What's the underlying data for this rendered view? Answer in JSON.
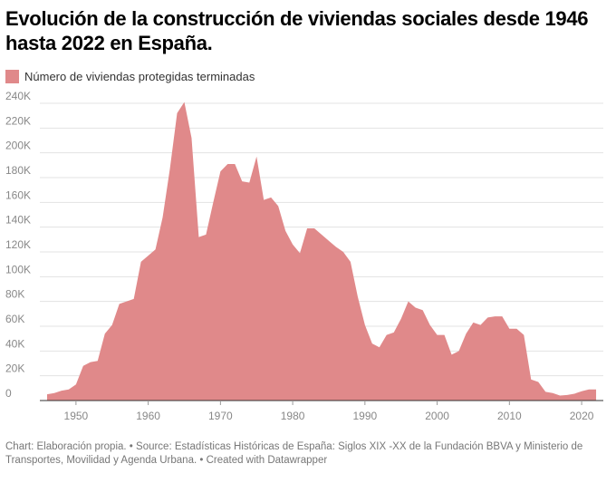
{
  "title": "Evolución de la construcción de viviendas sociales desde 1946 hasta 2022 en España.",
  "footer": "Chart: Elaboración propia. • Source: Estadísticas Históricas de España: Siglos XIX -XX de la Fundación BBVA y Ministerio de Transportes, Movilidad y Agenda Urbana. • Created with Datawrapper",
  "colors": {
    "area": "#e0898a",
    "grid": "#e3e3e3",
    "baseline": "#333333"
  },
  "chart_data": {
    "type": "area",
    "title": "Evolución de la construcción de viviendas sociales desde 1946 hasta 2022 en España.",
    "xlabel": "",
    "ylabel": "",
    "xlim": [
      1945,
      2023
    ],
    "ylim": [
      0,
      240000
    ],
    "grid": true,
    "legend_position": "top-left",
    "x_ticks": [
      1950,
      1960,
      1970,
      1980,
      1990,
      2000,
      2010,
      2020
    ],
    "x_tick_labels": [
      "1950",
      "1960",
      "1970",
      "1980",
      "1990",
      "2000",
      "2010",
      "2020"
    ],
    "y_ticks": [
      0,
      20000,
      40000,
      60000,
      80000,
      100000,
      120000,
      140000,
      160000,
      180000,
      200000,
      220000,
      240000
    ],
    "y_tick_labels": [
      "0",
      "20K",
      "40K",
      "60K",
      "80K",
      "100K",
      "120K",
      "140K",
      "160K",
      "180K",
      "200K",
      "220K",
      "240K"
    ],
    "x": [
      1946,
      1947,
      1948,
      1949,
      1950,
      1951,
      1952,
      1953,
      1954,
      1955,
      1956,
      1957,
      1958,
      1959,
      1960,
      1961,
      1962,
      1963,
      1964,
      1965,
      1966,
      1967,
      1968,
      1969,
      1970,
      1971,
      1972,
      1973,
      1974,
      1975,
      1976,
      1977,
      1978,
      1979,
      1980,
      1981,
      1982,
      1983,
      1984,
      1985,
      1986,
      1987,
      1988,
      1989,
      1990,
      1991,
      1992,
      1993,
      1994,
      1995,
      1996,
      1997,
      1998,
      1999,
      2000,
      2001,
      2002,
      2003,
      2004,
      2005,
      2006,
      2007,
      2008,
      2009,
      2010,
      2011,
      2012,
      2013,
      2014,
      2015,
      2016,
      2017,
      2018,
      2019,
      2020,
      2021,
      2022
    ],
    "series": [
      {
        "name": "Número de viviendas protegidas terminadas",
        "values": [
          5000,
          6000,
          8000,
          9000,
          13000,
          28000,
          31000,
          32000,
          54000,
          61000,
          78000,
          80000,
          82000,
          112000,
          117000,
          122000,
          148000,
          187000,
          232000,
          241000,
          212000,
          132000,
          134000,
          160000,
          185000,
          191000,
          191000,
          177000,
          176000,
          197000,
          162000,
          164000,
          157000,
          137000,
          126000,
          119000,
          139000,
          139000,
          134000,
          129000,
          124000,
          120000,
          112000,
          84000,
          61000,
          46000,
          43000,
          53000,
          55000,
          66000,
          80000,
          75000,
          73000,
          61000,
          53000,
          53000,
          37000,
          40000,
          54000,
          63000,
          61000,
          67000,
          68000,
          68000,
          58000,
          58000,
          53000,
          17000,
          15000,
          7000,
          6000,
          4000,
          4500,
          5500,
          7500,
          9000,
          9000
        ]
      }
    ]
  }
}
